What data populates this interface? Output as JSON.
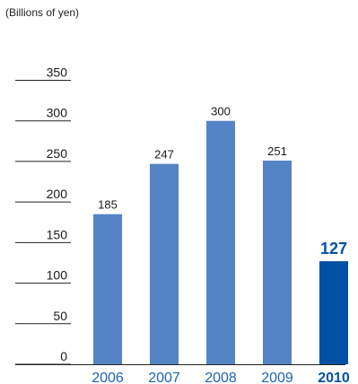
{
  "chart_data": {
    "type": "bar",
    "ylabel": "(Billions of yen)",
    "ylim": [
      0,
      350
    ],
    "yticks": [
      0,
      50,
      100,
      150,
      200,
      250,
      300,
      350
    ],
    "grid": false,
    "categories": [
      "2006",
      "2007",
      "2008",
      "2009",
      "2010"
    ],
    "values": [
      185,
      247,
      300,
      251,
      127
    ],
    "highlight_index": 4
  },
  "colors": {
    "bar": "#5584c6",
    "bar_highlight": "#0050a4",
    "category_text": "#1f62b3",
    "highlight_text": "#0050a4",
    "tick_line": "#222222"
  }
}
